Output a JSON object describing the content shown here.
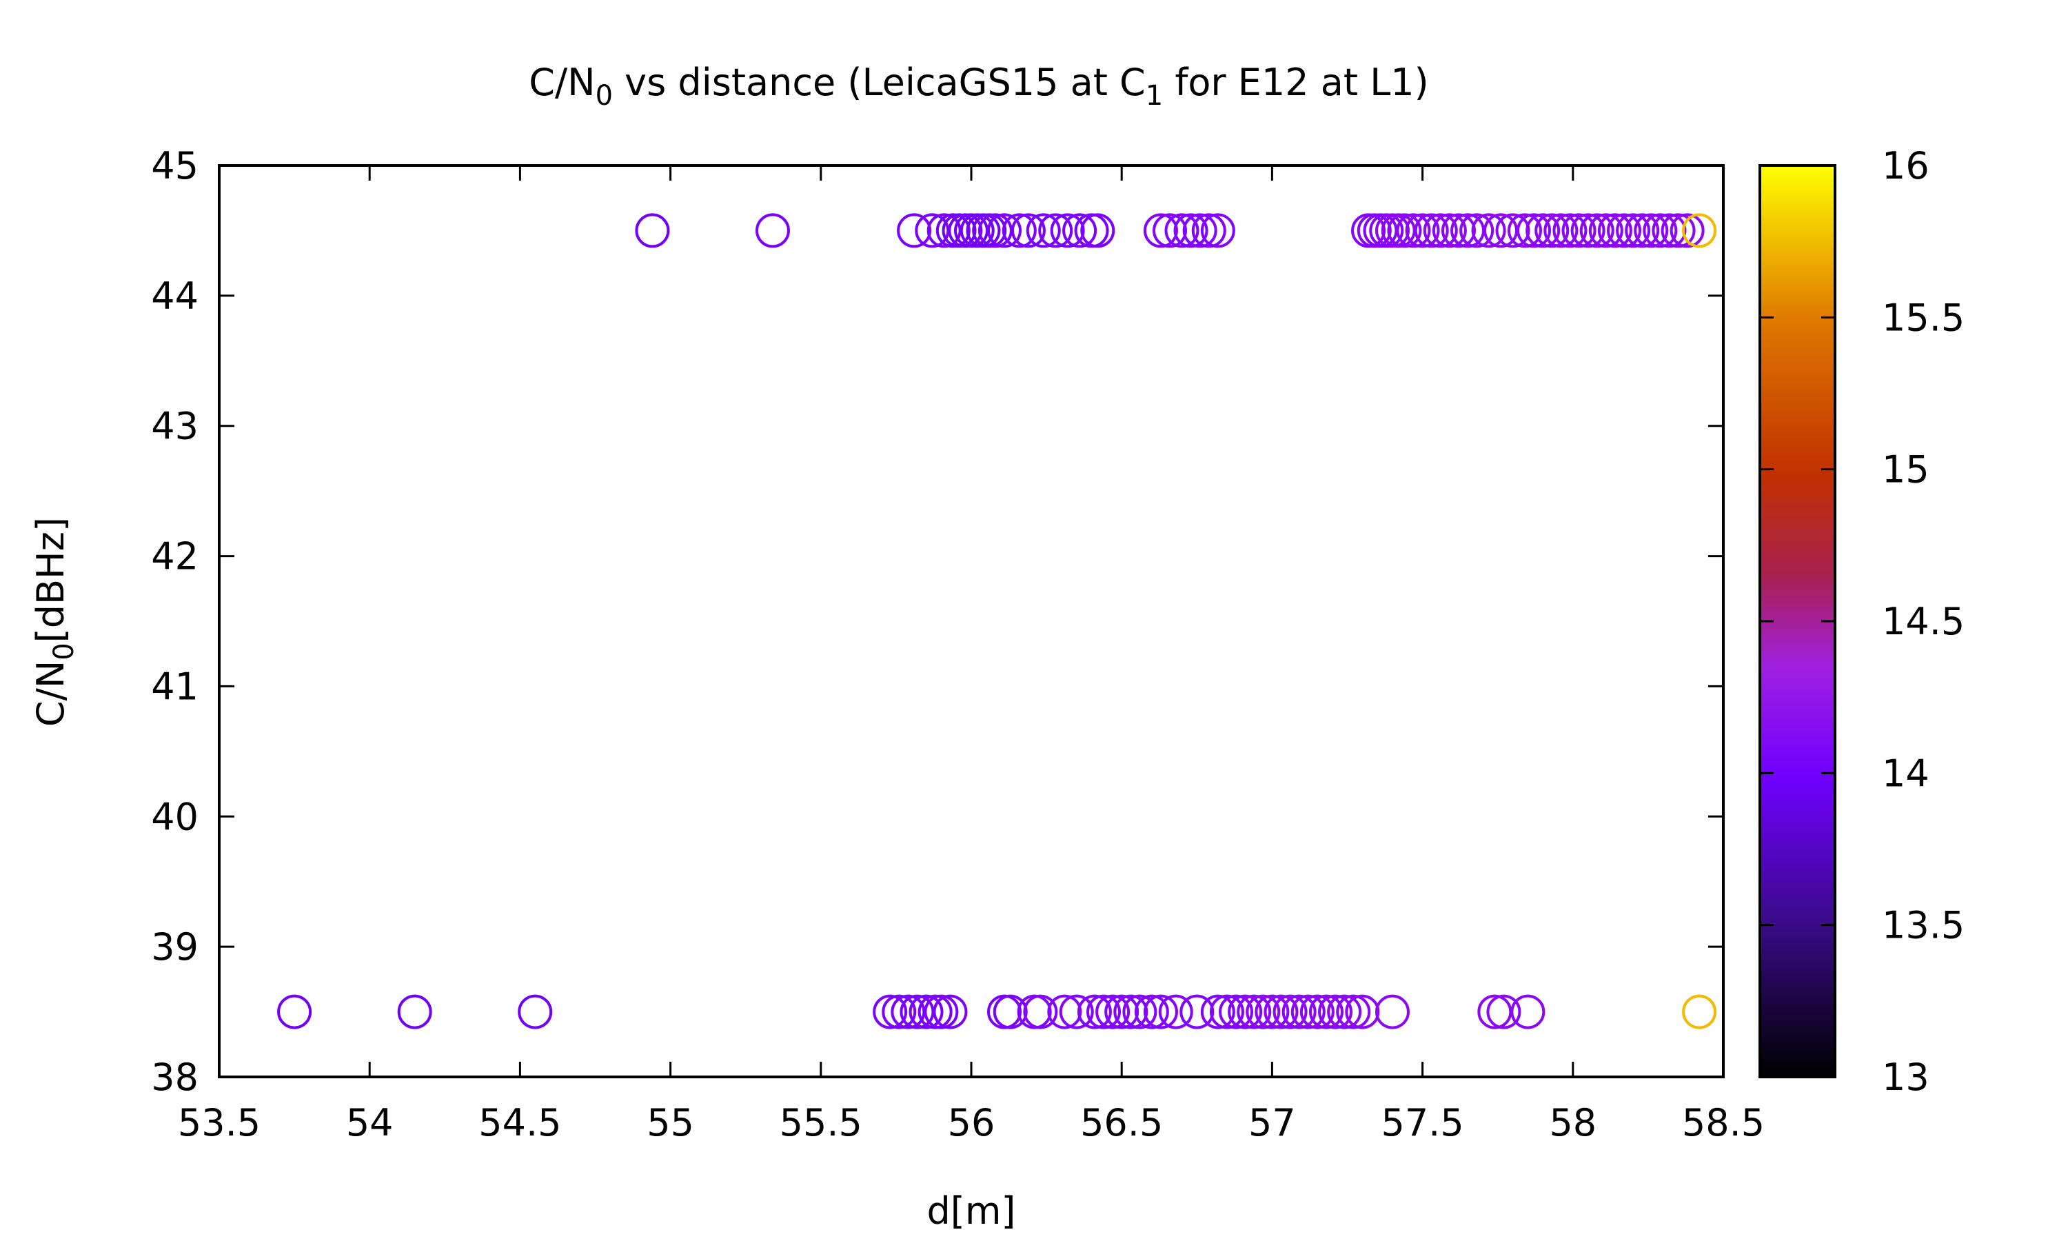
{
  "chart_data": {
    "type": "scatter",
    "title": {
      "prefix": "C/N",
      "sub1": "0",
      "middle": " vs distance (LeicaGS15 at C",
      "sub2": "1",
      "suffix": " for E12 at L1)"
    },
    "xlabel": "d[m]",
    "ylabel": {
      "prefix": "C/N",
      "sub": "0",
      "suffix": "[dBHz]"
    },
    "xlim": [
      53.5,
      58.5
    ],
    "ylim": [
      38,
      45
    ],
    "xticks": [
      "53.5",
      "54",
      "54.5",
      "55",
      "55.5",
      "56",
      "56.5",
      "57",
      "57.5",
      "58",
      "58.5"
    ],
    "yticks": [
      "38",
      "39",
      "40",
      "41",
      "42",
      "43",
      "44",
      "45"
    ],
    "colorbar": {
      "range": [
        13,
        16
      ],
      "ticks": [
        "13",
        "13.5",
        "14",
        "14.5",
        "15",
        "15.5",
        "16"
      ],
      "palette": "gnuplot black-blue-purple-red-orange-yellow"
    },
    "grid": false,
    "legend": "none",
    "marker": "open circle",
    "series": [
      {
        "y": 44.5,
        "x": [
          54.94,
          55.34,
          55.81,
          55.87,
          55.91,
          55.94,
          55.96,
          55.98,
          56.0,
          56.02,
          56.04,
          56.06,
          56.08,
          56.11,
          56.16,
          56.19,
          56.24,
          56.28,
          56.32,
          56.36,
          56.4,
          56.42,
          56.63,
          56.66,
          56.7,
          56.73,
          56.76,
          56.79,
          56.82,
          57.32,
          57.34,
          57.36,
          57.38,
          57.4,
          57.42,
          57.44,
          57.47,
          57.5,
          57.53,
          57.56,
          57.59,
          57.62,
          57.65,
          57.68,
          57.72,
          57.76,
          57.8,
          57.84,
          57.87,
          57.9,
          57.93,
          57.96,
          57.99,
          58.02,
          58.05,
          58.08,
          58.11,
          58.14,
          58.17,
          58.2,
          58.23,
          58.26,
          58.29,
          58.32,
          58.35,
          58.38,
          58.42
        ],
        "c": [
          13.6,
          13.7,
          13.7,
          13.7,
          13.7,
          13.6,
          13.6,
          13.6,
          13.6,
          13.6,
          13.6,
          13.6,
          13.7,
          13.7,
          13.7,
          13.7,
          13.7,
          13.7,
          13.7,
          13.7,
          13.7,
          13.7,
          13.8,
          13.8,
          13.8,
          13.8,
          13.8,
          13.8,
          13.8,
          13.8,
          13.8,
          13.8,
          13.8,
          13.9,
          13.9,
          13.9,
          13.9,
          13.9,
          13.9,
          13.9,
          13.9,
          13.9,
          13.9,
          13.9,
          13.9,
          13.9,
          13.9,
          13.9,
          13.9,
          13.9,
          13.9,
          13.9,
          13.9,
          13.9,
          13.9,
          13.9,
          13.9,
          13.9,
          13.9,
          13.9,
          13.9,
          13.9,
          13.9,
          13.9,
          13.9,
          13.9,
          15.7
        ]
      },
      {
        "y": 38.5,
        "x": [
          53.75,
          54.15,
          54.55,
          55.73,
          55.76,
          55.79,
          55.82,
          55.85,
          55.88,
          55.9,
          55.93,
          56.11,
          56.13,
          56.21,
          56.23,
          56.31,
          56.35,
          56.41,
          56.44,
          56.47,
          56.5,
          56.53,
          56.56,
          56.6,
          56.63,
          56.68,
          56.75,
          56.82,
          56.85,
          56.88,
          56.91,
          56.94,
          56.97,
          57.0,
          57.03,
          57.06,
          57.09,
          57.12,
          57.15,
          57.18,
          57.21,
          57.24,
          57.27,
          57.3,
          57.4,
          57.74,
          57.77,
          57.85,
          58.42
        ],
        "c": [
          13.6,
          13.6,
          13.6,
          13.7,
          13.7,
          13.7,
          13.7,
          13.7,
          13.7,
          13.7,
          13.7,
          13.7,
          13.7,
          13.8,
          13.8,
          13.8,
          13.8,
          13.8,
          13.8,
          13.8,
          13.8,
          13.8,
          13.8,
          13.8,
          13.8,
          13.8,
          13.8,
          13.8,
          13.8,
          13.8,
          13.8,
          13.9,
          13.9,
          13.9,
          13.9,
          13.9,
          13.9,
          13.9,
          13.9,
          13.9,
          13.9,
          13.9,
          13.9,
          13.9,
          13.9,
          13.9,
          13.9,
          13.9,
          15.7
        ]
      }
    ]
  }
}
